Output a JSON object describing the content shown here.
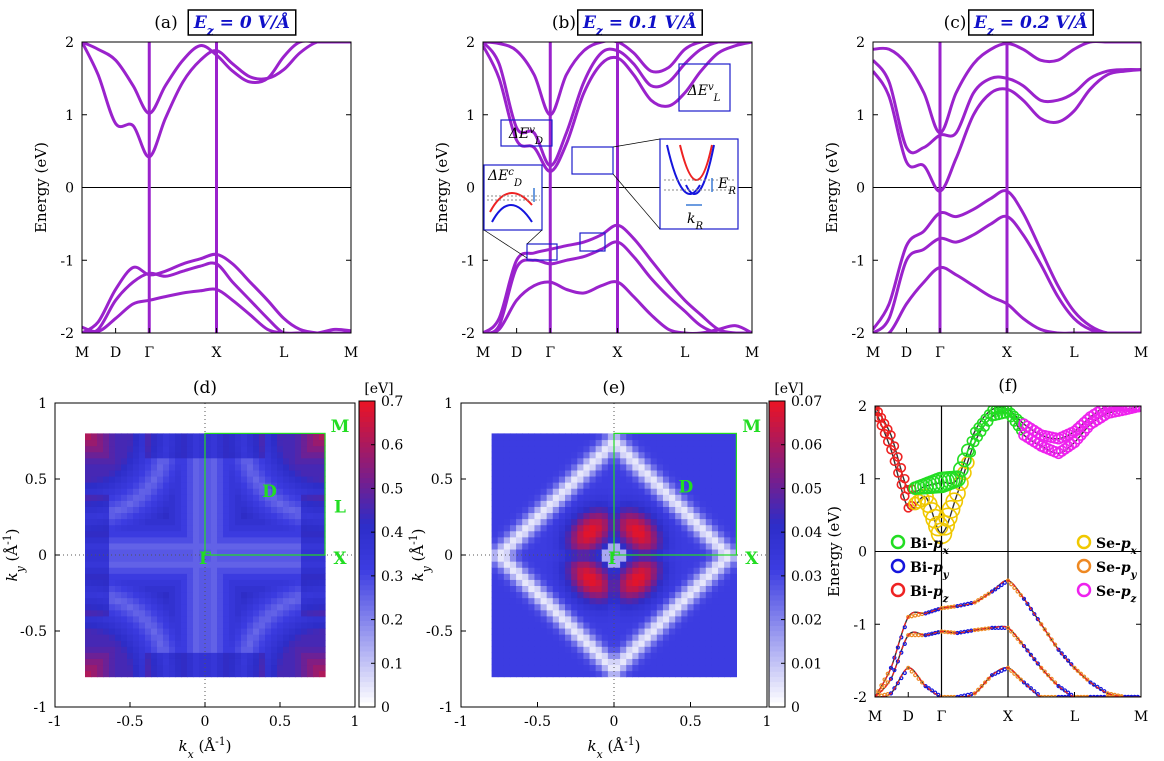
{
  "figure": "Band structure under perpendicular electric field E_z with Rashba-type splitting maps",
  "colors": {
    "band": "#9a22cc",
    "axis": "#000000",
    "box": "#1d1dcc",
    "bz": "#22dd22"
  },
  "chart_data": [
    {
      "id": "a",
      "type": "line",
      "title": "(a)",
      "field_label": "E_z = 0 V/Å",
      "ylabel": "Energy (eV)",
      "ylim": [
        -2,
        2
      ],
      "yticks": [
        "-2",
        "-1",
        "0",
        "1",
        "2"
      ],
      "kpoints": [
        "M",
        "D",
        "Γ",
        "X",
        "L",
        "M"
      ],
      "kpos": [
        0,
        0.25,
        0.5,
        1.0,
        1.5,
        2.0
      ],
      "series": [
        {
          "name": "cb1",
          "x": [
            0,
            0.12,
            0.25,
            0.38,
            0.5,
            0.62,
            0.75,
            0.88,
            1.0,
            1.12,
            1.25,
            1.38,
            1.5,
            1.62,
            1.75,
            1.88,
            2.0
          ],
          "y": [
            2.0,
            1.55,
            0.88,
            0.85,
            0.42,
            0.95,
            1.45,
            1.75,
            1.88,
            1.7,
            1.52,
            1.5,
            1.62,
            1.85,
            2.0,
            2.0,
            2.0
          ]
        },
        {
          "name": "cb2",
          "x": [
            0,
            0.12,
            0.25,
            0.38,
            0.5,
            0.62,
            0.75,
            0.88,
            1.0,
            1.12,
            1.25,
            1.38,
            1.5,
            1.62,
            1.75,
            1.88,
            2.0
          ],
          "y": [
            2.0,
            1.9,
            1.75,
            1.4,
            1.02,
            1.4,
            1.75,
            1.95,
            1.82,
            1.6,
            1.45,
            1.5,
            1.8,
            2.0,
            2.0,
            2.0,
            2.0
          ]
        },
        {
          "name": "vb1",
          "x": [
            0,
            0.12,
            0.25,
            0.38,
            0.5,
            0.62,
            0.75,
            0.88,
            1.0,
            1.12,
            1.25,
            1.38,
            1.5,
            1.62,
            1.75,
            1.88,
            2.0
          ],
          "y": [
            -2.0,
            -1.85,
            -1.4,
            -1.1,
            -1.2,
            -1.15,
            -1.05,
            -0.98,
            -0.92,
            -1.05,
            -1.3,
            -1.55,
            -1.8,
            -1.95,
            -2.0,
            -2.0,
            -2.0
          ]
        },
        {
          "name": "vb2",
          "x": [
            0,
            0.12,
            0.25,
            0.38,
            0.5,
            0.62,
            0.75,
            0.88,
            1.0,
            1.12,
            1.25,
            1.38,
            1.5,
            1.62,
            1.75,
            1.88,
            2.0
          ],
          "y": [
            -2.0,
            -1.95,
            -1.55,
            -1.3,
            -1.18,
            -1.22,
            -1.15,
            -1.08,
            -1.05,
            -1.3,
            -1.55,
            -1.8,
            -2.0,
            -2.0,
            -2.0,
            -1.95,
            -1.97
          ]
        },
        {
          "name": "vb3",
          "x": [
            0,
            0.12,
            0.25,
            0.38,
            0.5,
            0.62,
            0.75,
            0.88,
            1.0,
            1.12,
            1.25,
            1.38,
            1.5,
            1.62,
            1.75,
            1.88,
            2.0
          ],
          "y": [
            -1.92,
            -1.98,
            -1.8,
            -1.6,
            -1.55,
            -1.5,
            -1.45,
            -1.42,
            -1.4,
            -1.55,
            -1.75,
            -1.95,
            -2.0,
            -2.0,
            -2.0,
            -2.0,
            -2.0
          ]
        }
      ]
    },
    {
      "id": "b",
      "type": "line",
      "title": "(b)",
      "field_label": "E_z = 0.1 V/Å",
      "ylabel": "Energy (eV)",
      "ylim": [
        -2,
        2
      ],
      "yticks": [
        "-2",
        "-1",
        "0",
        "1",
        "2"
      ],
      "kpoints": [
        "M",
        "D",
        "Γ",
        "X",
        "L",
        "M"
      ],
      "kpos": [
        0,
        0.25,
        0.5,
        1.0,
        1.5,
        2.0
      ],
      "annotations": [
        "ΔE_D^v",
        "ΔE_L^v",
        "ΔE_D^c",
        "E_R",
        "k_R"
      ],
      "series": [
        {
          "name": "cb1",
          "x": [
            0,
            0.12,
            0.25,
            0.38,
            0.5,
            0.62,
            0.75,
            0.88,
            1.0,
            1.12,
            1.25,
            1.38,
            1.5,
            1.62,
            1.75,
            1.88,
            2.0
          ],
          "y": [
            1.95,
            1.5,
            0.65,
            0.55,
            0.22,
            0.6,
            1.3,
            1.7,
            1.78,
            1.55,
            1.2,
            1.12,
            1.3,
            1.6,
            1.85,
            1.95,
            2.0
          ]
        },
        {
          "name": "cb2",
          "x": [
            0,
            0.12,
            0.25,
            0.38,
            0.5,
            0.62,
            0.75,
            0.88,
            1.0,
            1.12,
            1.25,
            1.38,
            1.5,
            1.62,
            1.75,
            1.88,
            2.0
          ],
          "y": [
            2.0,
            1.7,
            0.82,
            0.75,
            0.3,
            0.75,
            1.45,
            1.85,
            1.88,
            1.7,
            1.4,
            1.45,
            1.7,
            1.9,
            2.0,
            2.0,
            2.0
          ]
        },
        {
          "name": "cb3",
          "x": [
            0,
            0.12,
            0.25,
            0.38,
            0.5,
            0.62,
            0.75,
            0.88,
            1.0,
            1.12,
            1.25,
            1.38,
            1.5,
            1.62,
            1.75,
            1.88,
            2.0
          ],
          "y": [
            2.0,
            1.98,
            1.88,
            1.55,
            1.0,
            1.55,
            1.88,
            2.0,
            2.0,
            1.85,
            1.6,
            1.65,
            1.9,
            2.0,
            2.0,
            2.0,
            2.0
          ]
        },
        {
          "name": "vb1",
          "x": [
            0,
            0.12,
            0.25,
            0.38,
            0.5,
            0.62,
            0.75,
            0.88,
            1.0,
            1.12,
            1.25,
            1.38,
            1.5,
            1.62,
            1.75,
            1.88,
            2.0
          ],
          "y": [
            -2.0,
            -1.8,
            -1.0,
            -0.9,
            -0.85,
            -0.8,
            -0.75,
            -0.65,
            -0.52,
            -0.7,
            -1.0,
            -1.3,
            -1.55,
            -1.75,
            -1.95,
            -2.0,
            -2.0
          ]
        },
        {
          "name": "vb2",
          "x": [
            0,
            0.12,
            0.25,
            0.38,
            0.5,
            0.62,
            0.75,
            0.88,
            1.0,
            1.12,
            1.25,
            1.38,
            1.5,
            1.62,
            1.75,
            1.88,
            2.0
          ],
          "y": [
            -2.0,
            -1.9,
            -1.1,
            -1.0,
            -1.05,
            -1.0,
            -0.95,
            -0.85,
            -0.75,
            -0.95,
            -1.25,
            -1.5,
            -1.7,
            -1.9,
            -2.0,
            -2.0,
            -2.0
          ]
        },
        {
          "name": "vb3",
          "x": [
            0,
            0.12,
            0.25,
            0.38,
            0.5,
            0.62,
            0.75,
            0.88,
            1.0,
            1.12,
            1.25,
            1.38,
            1.5,
            1.62,
            1.75,
            1.88,
            2.0
          ],
          "y": [
            -2.0,
            -1.95,
            -1.55,
            -1.35,
            -1.3,
            -1.4,
            -1.45,
            -1.35,
            -1.3,
            -1.5,
            -1.75,
            -1.95,
            -2.0,
            -2.0,
            -1.95,
            -1.9,
            -2.0
          ]
        }
      ]
    },
    {
      "id": "c",
      "type": "line",
      "title": "(c)",
      "field_label": "E_z = 0.2 V/Å",
      "ylabel": "Energy (eV)",
      "ylim": [
        -2,
        2
      ],
      "yticks": [
        "-2",
        "-1",
        "0",
        "1",
        "2"
      ],
      "kpoints": [
        "M",
        "D",
        "Γ",
        "X",
        "L",
        "M"
      ],
      "kpos": [
        0,
        0.25,
        0.5,
        1.0,
        1.5,
        2.0
      ],
      "series": [
        {
          "name": "cb1",
          "x": [
            0,
            0.12,
            0.25,
            0.38,
            0.5,
            0.62,
            0.75,
            0.88,
            1.0,
            1.12,
            1.25,
            1.38,
            1.5,
            1.62,
            1.75,
            1.88,
            2.0
          ],
          "y": [
            1.6,
            1.25,
            0.35,
            0.3,
            -0.05,
            0.4,
            1.0,
            1.3,
            1.35,
            1.2,
            0.95,
            0.9,
            1.05,
            1.35,
            1.55,
            1.6,
            1.62
          ]
        },
        {
          "name": "cb2",
          "x": [
            0,
            0.12,
            0.25,
            0.38,
            0.5,
            0.62,
            0.75,
            0.88,
            1.0,
            1.12,
            1.25,
            1.38,
            1.5,
            1.62,
            1.75,
            1.88,
            2.0
          ],
          "y": [
            1.75,
            1.45,
            0.55,
            0.55,
            0.72,
            0.75,
            1.3,
            1.5,
            1.5,
            1.4,
            1.2,
            1.2,
            1.3,
            1.5,
            1.6,
            1.62,
            1.62
          ]
        },
        {
          "name": "cb3",
          "x": [
            0,
            0.12,
            0.25,
            0.38,
            0.5,
            0.62,
            0.75,
            0.88,
            1.0,
            1.12,
            1.25,
            1.38,
            1.5,
            1.62,
            1.75,
            1.88,
            2.0
          ],
          "y": [
            1.9,
            1.9,
            1.7,
            1.3,
            0.75,
            1.3,
            1.7,
            1.9,
            1.98,
            1.9,
            1.75,
            1.75,
            1.9,
            2.0,
            2.0,
            2.0,
            2.0
          ]
        },
        {
          "name": "vb1",
          "x": [
            0,
            0.12,
            0.25,
            0.38,
            0.5,
            0.62,
            0.75,
            0.88,
            1.0,
            1.12,
            1.25,
            1.38,
            1.5,
            1.62,
            1.75,
            1.88,
            2.0
          ],
          "y": [
            -1.95,
            -1.6,
            -0.8,
            -0.6,
            -0.35,
            -0.4,
            -0.3,
            -0.15,
            -0.05,
            -0.35,
            -0.85,
            -1.35,
            -1.7,
            -1.9,
            -2.0,
            -2.0,
            -2.0
          ]
        },
        {
          "name": "vb2",
          "x": [
            0,
            0.12,
            0.25,
            0.38,
            0.5,
            0.62,
            0.75,
            0.88,
            1.0,
            1.12,
            1.25,
            1.38,
            1.5,
            1.62,
            1.75,
            1.88,
            2.0
          ],
          "y": [
            -2.0,
            -1.8,
            -1.0,
            -0.85,
            -0.7,
            -0.75,
            -0.65,
            -0.5,
            -0.4,
            -0.65,
            -1.05,
            -1.5,
            -1.8,
            -1.95,
            -2.0,
            -2.0,
            -2.0
          ]
        },
        {
          "name": "vb3",
          "x": [
            0,
            0.12,
            0.25,
            0.38,
            0.5,
            0.62,
            0.75,
            0.88,
            1.0,
            1.12,
            1.25,
            1.38,
            1.5,
            1.62,
            1.75,
            1.88,
            2.0
          ],
          "y": [
            -2.0,
            -2.0,
            -1.6,
            -1.3,
            -1.1,
            -1.2,
            -1.35,
            -1.5,
            -1.6,
            -1.8,
            -1.95,
            -2.0,
            -2.0,
            -2.0,
            -2.0,
            -2.0,
            -2.0
          ]
        }
      ]
    },
    {
      "id": "d",
      "type": "heatmap",
      "title": "(d)",
      "unit": "[eV]",
      "xlabel": "k_x (Å^-1)",
      "ylabel": "k_y (Å^-1)",
      "xlim": [
        -1,
        1
      ],
      "ylim": [
        -1,
        1
      ],
      "xticks": [
        "-1",
        "-0.5",
        "0",
        "0.5",
        "1"
      ],
      "yticks": [
        "-1",
        "-0.5",
        "0",
        "0.5",
        "1"
      ],
      "colorbar_range": [
        0,
        0.7
      ],
      "colorbar_ticks": [
        "0",
        "0.1",
        "0.2",
        "0.3",
        "0.4",
        "0.5",
        "0.6",
        "0.7"
      ],
      "points": [
        "M",
        "D",
        "L",
        "Γ",
        "X"
      ]
    },
    {
      "id": "e",
      "type": "heatmap",
      "title": "(e)",
      "unit": "[eV]",
      "xlabel": "k_x (Å^-1)",
      "ylabel": "k_y (Å^-1)",
      "xlim": [
        -1,
        1
      ],
      "ylim": [
        -1,
        1
      ],
      "xticks": [
        "-1",
        "-0.5",
        "0",
        "0.5",
        "1"
      ],
      "yticks": [
        "-1",
        "-0.5",
        "0",
        "0.5",
        "1"
      ],
      "colorbar_range": [
        0,
        0.07
      ],
      "colorbar_ticks": [
        "0",
        "0.01",
        "0.02",
        "0.03",
        "0.04",
        "0.05",
        "0.06",
        "0.07"
      ],
      "points": [
        "M",
        "D",
        "Γ",
        "X"
      ]
    },
    {
      "id": "f",
      "type": "scatter",
      "title": "(f)",
      "ylabel": "Energy (eV)",
      "ylim": [
        -2,
        2
      ],
      "yticks": [
        "-2",
        "-1",
        "0",
        "1",
        "2"
      ],
      "kpoints": [
        "M",
        "D",
        "Γ",
        "X",
        "L",
        "M"
      ],
      "kpos": [
        0,
        0.25,
        0.5,
        1.0,
        1.5,
        2.0
      ],
      "legend": [
        {
          "label": "Bi-p_x",
          "color": "#22dd22"
        },
        {
          "label": "Bi-p_y",
          "color": "#1515dd"
        },
        {
          "label": "Bi-p_z",
          "color": "#ee2222"
        },
        {
          "label": "Se-p_x",
          "color": "#f0c800"
        },
        {
          "label": "Se-p_y",
          "color": "#ee8822"
        },
        {
          "label": "Se-p_z",
          "color": "#ee22ee"
        }
      ],
      "series": [
        {
          "name": "cb1",
          "x": [
            0,
            0.12,
            0.25,
            0.38,
            0.5,
            0.62,
            0.75,
            0.88,
            1.0,
            1.12,
            1.25,
            1.38,
            1.5,
            1.62,
            1.75,
            1.88,
            2.0
          ],
          "y": [
            1.95,
            1.4,
            0.6,
            0.75,
            0.25,
            0.8,
            1.5,
            1.85,
            1.9,
            1.6,
            1.45,
            1.35,
            1.5,
            1.75,
            1.9,
            1.95,
            2.0
          ]
        },
        {
          "name": "cb2",
          "x": [
            0,
            0.12,
            0.25,
            0.38,
            0.5,
            0.62,
            0.75,
            0.88,
            1.0,
            1.12,
            1.25,
            1.38,
            1.5,
            1.62,
            1.75,
            1.88,
            2.0
          ],
          "y": [
            2.0,
            1.6,
            0.85,
            0.9,
            0.95,
            1.0,
            1.65,
            1.95,
            1.95,
            1.75,
            1.6,
            1.55,
            1.65,
            1.85,
            2.0,
            2.0,
            2.0
          ]
        },
        {
          "name": "vb1",
          "x": [
            0,
            0.12,
            0.25,
            0.38,
            0.5,
            0.62,
            0.75,
            0.88,
            1.0,
            1.12,
            1.25,
            1.38,
            1.5,
            1.62,
            1.75,
            1.88,
            2.0
          ],
          "y": [
            -2.0,
            -1.6,
            -0.9,
            -0.85,
            -0.78,
            -0.75,
            -0.7,
            -0.55,
            -0.4,
            -0.65,
            -1.0,
            -1.35,
            -1.6,
            -1.8,
            -1.95,
            -2.0,
            -2.0
          ]
        },
        {
          "name": "vb2",
          "x": [
            0,
            0.12,
            0.25,
            0.38,
            0.5,
            0.62,
            0.75,
            0.88,
            1.0,
            1.12,
            1.25,
            1.38,
            1.5,
            1.62,
            1.75,
            1.88,
            2.0
          ],
          "y": [
            -2.0,
            -1.75,
            -1.15,
            -1.15,
            -1.1,
            -1.12,
            -1.08,
            -1.05,
            -1.05,
            -1.3,
            -1.6,
            -1.85,
            -2.0,
            -2.0,
            -2.0,
            -2.0,
            -2.0
          ]
        },
        {
          "name": "vb3",
          "x": [
            0,
            0.12,
            0.25,
            0.38,
            0.5,
            0.62,
            0.75,
            0.88,
            1.0,
            1.12,
            1.25,
            1.38,
            1.5,
            1.62,
            1.75,
            1.88,
            2.0
          ],
          "y": [
            -2.0,
            -1.95,
            -1.6,
            -1.85,
            -2.0,
            -2.0,
            -1.95,
            -1.7,
            -1.6,
            -1.8,
            -2.0,
            -2.0,
            -2.0,
            -2.0,
            -2.0,
            -2.0,
            -2.0
          ]
        }
      ]
    }
  ]
}
